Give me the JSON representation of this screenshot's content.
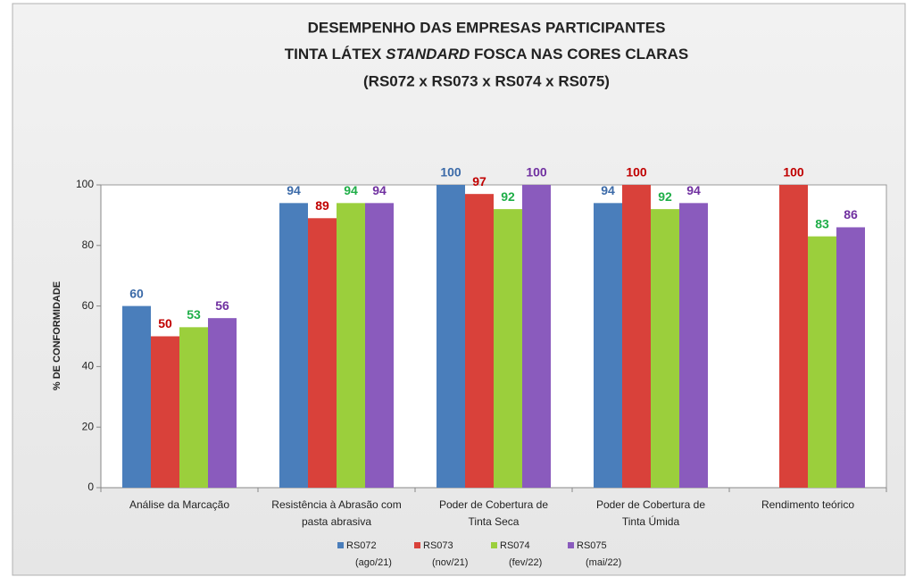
{
  "chart_data": {
    "type": "bar",
    "title": [
      "DESEMPENHO DAS EMPRESAS PARTICIPANTES",
      [
        "TINTA LÁTEX",
        "STANDARD",
        "FOSCA NAS CORES CLARAS"
      ],
      "(RS072 x RS073 x RS074 x RS075)"
    ],
    "ylabel": "% DE CONFORMIDADE",
    "categories": [
      [
        "Análise da Marcação"
      ],
      [
        "Resistência à Abrasão com",
        "pasta abrasiva"
      ],
      [
        "Poder de Cobertura de",
        "Tinta Seca"
      ],
      [
        "Poder de Cobertura de",
        "Tinta Úmida"
      ],
      [
        "Rendimento teórico"
      ]
    ],
    "series": [
      {
        "name": "RS072",
        "period": "(ago/21)",
        "color": "#4a7ebb",
        "label_color": "#3b6aa8",
        "values": [
          60,
          94,
          100,
          94,
          null
        ]
      },
      {
        "name": "RS073",
        "period": "(nov/21)",
        "color": "#d9413a",
        "label_color": "#c00000",
        "values": [
          50,
          89,
          97,
          100,
          100
        ]
      },
      {
        "name": "RS074",
        "period": "(fev/22)",
        "color": "#9bcf3c",
        "label_color": "#1fae48",
        "values": [
          53,
          94,
          92,
          92,
          83
        ]
      },
      {
        "name": "RS075",
        "period": "(mai/22)",
        "color": "#8a5bbd",
        "label_color": "#7030a0",
        "values": [
          56,
          94,
          100,
          94,
          86
        ]
      }
    ],
    "ylim": [
      0,
      100
    ],
    "yticks": [
      0,
      20,
      40,
      60,
      80,
      100
    ],
    "grid": false
  }
}
